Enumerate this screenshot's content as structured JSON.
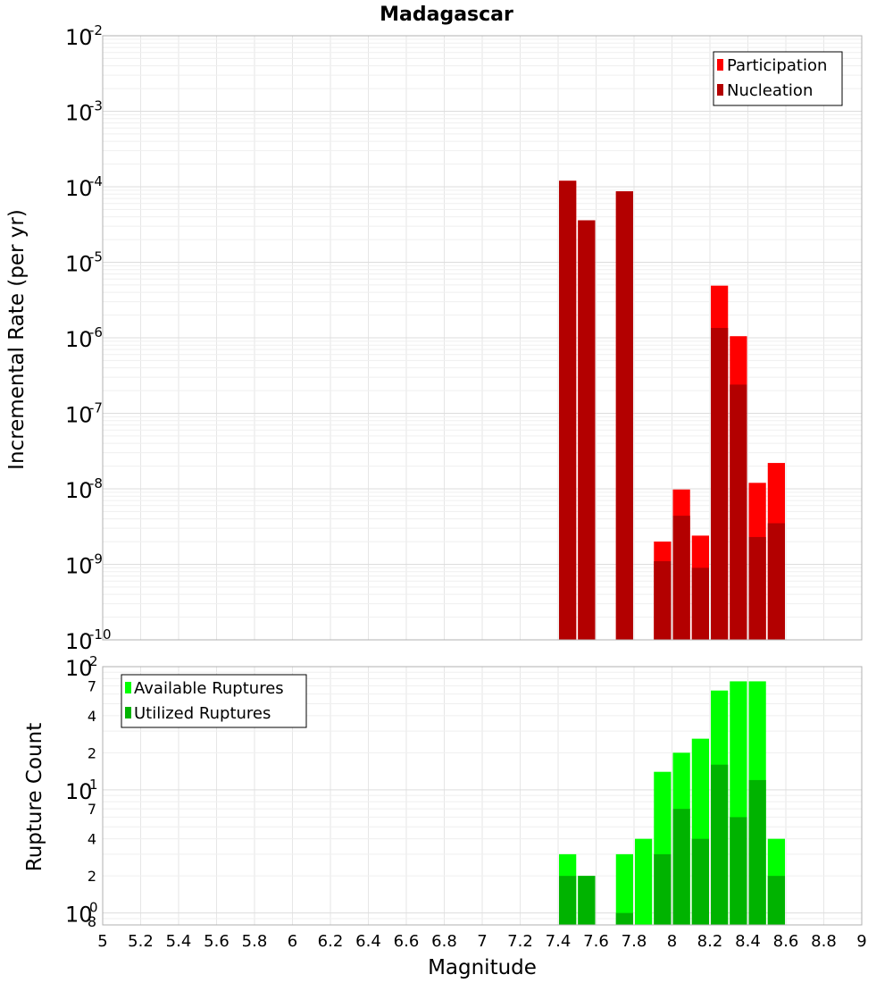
{
  "chart_data": [
    {
      "type": "bar",
      "title": "Madagascar",
      "xlabel": "",
      "ylabel": "Incremental Rate (per yr)",
      "xlim": [
        5,
        9
      ],
      "ylim": [
        1e-10,
        0.01
      ],
      "yscale": "log",
      "bar_width": 0.1,
      "grid": true,
      "legend_position": "top-right",
      "y_ticks": [
        {
          "base": "10",
          "exp": "-2",
          "value": 0.01
        },
        {
          "base": "10",
          "exp": "-3",
          "value": 0.001
        },
        {
          "base": "10",
          "exp": "-4",
          "value": 0.0001
        },
        {
          "base": "10",
          "exp": "-5",
          "value": 1e-05
        },
        {
          "base": "10",
          "exp": "-6",
          "value": 1e-06
        },
        {
          "base": "10",
          "exp": "-7",
          "value": 1e-07
        },
        {
          "base": "10",
          "exp": "-8",
          "value": 1e-08
        },
        {
          "base": "10",
          "exp": "-9",
          "value": 1e-09
        },
        {
          "base": "10",
          "exp": "-10",
          "value": 1e-10
        }
      ],
      "series": [
        {
          "name": "Participation",
          "color": "#ff0000",
          "x": [
            7.45,
            7.55,
            7.75,
            7.95,
            8.05,
            8.15,
            8.25,
            8.35,
            8.45,
            8.55
          ],
          "values": [
            0.00012,
            3.6e-05,
            8.7e-05,
            2e-09,
            9.8e-09,
            2.4e-09,
            4.9e-06,
            1.05e-06,
            1.2e-08,
            2.2e-08
          ]
        },
        {
          "name": "Nucleation",
          "color": "#b30000",
          "x": [
            7.45,
            7.55,
            7.75,
            7.95,
            8.05,
            8.15,
            8.25,
            8.35,
            8.45,
            8.55
          ],
          "values": [
            0.00012,
            3.6e-05,
            8.7e-05,
            1.1e-09,
            4.4e-09,
            9e-10,
            1.35e-06,
            2.4e-07,
            2.3e-09,
            3.5e-09
          ]
        }
      ]
    },
    {
      "type": "bar",
      "title": "",
      "xlabel": "Magnitude",
      "ylabel": "Rupture Count",
      "xlim": [
        5,
        9
      ],
      "ylim": [
        0.8,
        100
      ],
      "yscale": "log",
      "bar_width": 0.1,
      "grid": true,
      "legend_position": "top-left",
      "x_ticks": [
        "5",
        "5.2",
        "5.4",
        "5.6",
        "5.8",
        "6",
        "6.2",
        "6.4",
        "6.6",
        "6.8",
        "7",
        "7.2",
        "7.4",
        "7.6",
        "7.8",
        "8",
        "8.2",
        "8.4",
        "8.6",
        "8.8",
        "9"
      ],
      "y_major_ticks": [
        {
          "base": "10",
          "exp": "2",
          "value": 100
        },
        {
          "base": "10",
          "exp": "1",
          "value": 10
        },
        {
          "base": "10",
          "exp": "0",
          "value": 1
        }
      ],
      "y_minor_ticks": [
        {
          "label": "7",
          "value": 70
        },
        {
          "label": "4",
          "value": 40
        },
        {
          "label": "2",
          "value": 20
        },
        {
          "label": "7",
          "value": 7
        },
        {
          "label": "4",
          "value": 4
        },
        {
          "label": "2",
          "value": 2
        },
        {
          "label": "8",
          "value": 0.8
        }
      ],
      "series": [
        {
          "name": "Available Ruptures",
          "color": "#00ff00",
          "x": [
            7.45,
            7.55,
            7.75,
            7.85,
            7.95,
            8.05,
            8.15,
            8.25,
            8.35,
            8.45,
            8.55
          ],
          "values": [
            3,
            2,
            3,
            4,
            14,
            20,
            26,
            64,
            76,
            76,
            4
          ]
        },
        {
          "name": "Utilized Ruptures",
          "color": "#00b300",
          "x": [
            7.45,
            7.55,
            7.75,
            7.85,
            7.95,
            8.05,
            8.15,
            8.25,
            8.35,
            8.45,
            8.55
          ],
          "values": [
            2,
            2,
            1,
            0,
            3,
            7,
            4,
            16,
            6,
            12,
            2
          ]
        }
      ]
    }
  ]
}
